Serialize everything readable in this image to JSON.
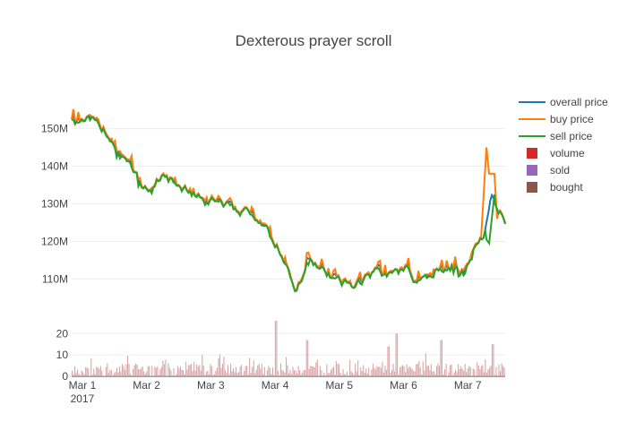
{
  "chart_data": {
    "type": "line",
    "title": "Dexterous prayer scroll",
    "x_axis": {
      "range": [
        "2017-02-28T20:00",
        "2017-03-07T14:00"
      ],
      "ticks": [
        "Mar 1",
        "Mar 2",
        "Mar 3",
        "Mar 4",
        "Mar 5",
        "Mar 6",
        "Mar 7"
      ],
      "tick_dates": [
        "2017-03-01",
        "2017-03-02",
        "2017-03-03",
        "2017-03-04",
        "2017-03-05",
        "2017-03-06",
        "2017-03-07"
      ],
      "year_label": "2017"
    },
    "price_axis": {
      "range": [
        102000000,
        158000000
      ],
      "ticks": [
        110000000,
        120000000,
        130000000,
        140000000,
        150000000
      ],
      "tick_labels": [
        "110M",
        "120M",
        "130M",
        "140M",
        "150M"
      ]
    },
    "volume_axis": {
      "range": [
        0,
        26
      ],
      "ticks": [
        0,
        10,
        20
      ],
      "tick_labels": [
        "0",
        "10",
        "20"
      ]
    },
    "price_keypoints": [
      [
        "2017-02-28T20:00",
        152500000
      ],
      [
        "2017-03-01T03:00",
        152800000
      ],
      [
        "2017-03-01T06:00",
        150500000
      ],
      [
        "2017-03-01T10:00",
        148500000
      ],
      [
        "2017-03-01T13:00",
        145000000
      ],
      [
        "2017-03-01T16:00",
        142500000
      ],
      [
        "2017-03-01T19:00",
        138500000
      ],
      [
        "2017-03-01T22:00",
        135000000
      ],
      [
        "2017-03-02T00:00",
        134000000
      ],
      [
        "2017-03-02T03:00",
        136000000
      ],
      [
        "2017-03-02T06:00",
        137500000
      ],
      [
        "2017-03-02T10:00",
        135500000
      ],
      [
        "2017-03-02T14:00",
        134000000
      ],
      [
        "2017-03-02T18:00",
        132500000
      ],
      [
        "2017-03-02T22:00",
        131500000
      ],
      [
        "2017-03-03T04:00",
        130500000
      ],
      [
        "2017-03-03T10:00",
        128500000
      ],
      [
        "2017-03-03T16:00",
        127500000
      ],
      [
        "2017-03-03T19:00",
        125000000
      ],
      [
        "2017-03-03T22:00",
        121500000
      ],
      [
        "2017-03-04T01:00",
        118500000
      ],
      [
        "2017-03-04T04:00",
        114500000
      ],
      [
        "2017-03-04T06:00",
        109000000
      ],
      [
        "2017-03-04T08:00",
        106500000
      ],
      [
        "2017-03-04T10:00",
        110500000
      ],
      [
        "2017-03-04T13:00",
        116000000
      ],
      [
        "2017-03-04T16:00",
        114000000
      ],
      [
        "2017-03-04T19:00",
        111000000
      ],
      [
        "2017-03-04T22:00",
        110000000
      ],
      [
        "2017-03-05T02:00",
        109000000
      ],
      [
        "2017-03-05T06:00",
        108000000
      ],
      [
        "2017-03-05T10:00",
        110500000
      ],
      [
        "2017-03-05T14:00",
        112000000
      ],
      [
        "2017-03-05T18:00",
        110500000
      ],
      [
        "2017-03-05T22:00",
        112000000
      ],
      [
        "2017-03-06T02:00",
        113000000
      ],
      [
        "2017-03-06T05:00",
        109000000
      ],
      [
        "2017-03-06T09:00",
        110500000
      ],
      [
        "2017-03-06T13:00",
        112000000
      ],
      [
        "2017-03-06T17:00",
        113500000
      ],
      [
        "2017-03-06T21:00",
        112000000
      ],
      [
        "2017-03-07T00:00",
        113500000
      ],
      [
        "2017-03-07T03:00",
        119500000
      ],
      [
        "2017-03-07T06:00",
        122000000
      ],
      [
        "2017-03-07T09:00",
        133000000
      ],
      [
        "2017-03-07T11:00",
        128500000
      ],
      [
        "2017-03-07T14:00",
        125500000
      ]
    ],
    "series": [
      {
        "name": "overall price",
        "color": "#1f77b4",
        "kind": "line"
      },
      {
        "name": "buy price",
        "color": "#ff7f0e",
        "kind": "line"
      },
      {
        "name": "sell price",
        "color": "#2ca02c",
        "kind": "line"
      },
      {
        "name": "volume",
        "color": "#d62728",
        "kind": "bar"
      },
      {
        "name": "sold",
        "color": "#9467bd",
        "kind": "bar"
      },
      {
        "name": "bought",
        "color": "#8c564b",
        "kind": "bar"
      }
    ],
    "volume_bars_color": "#d9a5a8",
    "volume_peaks": [
      [
        "2017-03-04T00:00",
        26
      ],
      [
        "2017-03-04T12:00",
        17
      ],
      [
        "2017-03-05T21:00",
        20
      ],
      [
        "2017-03-05T18:00",
        14
      ],
      [
        "2017-03-06T14:00",
        17
      ],
      [
        "2017-03-07T09:00",
        15
      ]
    ],
    "buy_spike": [
      [
        "2017-03-07T05:00",
        121000000
      ],
      [
        "2017-03-07T07:00",
        145000000
      ],
      [
        "2017-03-07T08:00",
        138000000
      ],
      [
        "2017-03-07T10:00",
        138000000
      ],
      [
        "2017-03-07T11:00",
        126000000
      ]
    ],
    "sell_dip": [
      [
        "2017-03-07T07:00",
        120500000
      ],
      [
        "2017-03-07T08:00",
        119500000
      ],
      [
        "2017-03-07T10:00",
        132500000
      ]
    ],
    "legend_position": "right",
    "grid": true
  }
}
